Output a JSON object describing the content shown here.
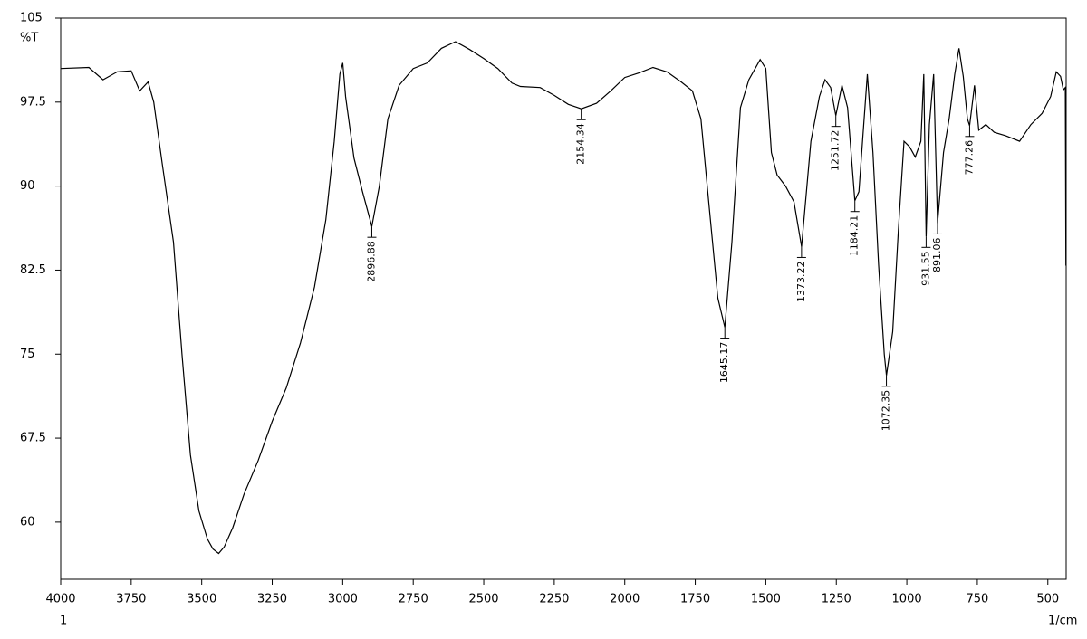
{
  "chart_data": {
    "type": "line",
    "y_label": "%T",
    "x_label": "1/cm",
    "x_note": "1",
    "color": "#000000",
    "xlim": [
      4000,
      435
    ],
    "ylim": [
      54.9,
      105
    ],
    "xticks": [
      4000,
      3750,
      3500,
      3250,
      3000,
      2750,
      2500,
      2250,
      2000,
      1750,
      1500,
      1250,
      1000,
      750,
      500
    ],
    "yticks": [
      105,
      97.5,
      90,
      82.5,
      75,
      67.5,
      60
    ],
    "x": [
      4000,
      3900,
      3850,
      3800,
      3750,
      3720,
      3690,
      3670,
      3640,
      3600,
      3570,
      3540,
      3510,
      3480,
      3460,
      3440,
      3420,
      3390,
      3350,
      3300,
      3250,
      3200,
      3150,
      3100,
      3060,
      3030,
      3010,
      3000,
      2990,
      2960,
      2930,
      2896.88,
      2870,
      2840,
      2800,
      2750,
      2700,
      2650,
      2600,
      2550,
      2500,
      2450,
      2400,
      2370,
      2300,
      2250,
      2200,
      2154.34,
      2100,
      2050,
      2000,
      1950,
      1900,
      1850,
      1800,
      1760,
      1730,
      1700,
      1670,
      1645.17,
      1620,
      1590,
      1560,
      1520,
      1500,
      1480,
      1460,
      1430,
      1400,
      1373.22,
      1340,
      1310,
      1290,
      1270,
      1251.72,
      1230,
      1210,
      1184.21,
      1170,
      1150,
      1140,
      1120,
      1100,
      1080,
      1072.35,
      1050,
      1030,
      1010,
      990,
      970,
      950,
      940,
      931.55,
      920,
      905,
      891.06,
      870,
      850,
      830,
      815,
      800,
      785,
      777.26,
      760,
      745,
      720,
      690,
      650,
      600,
      560,
      520,
      490,
      470,
      455,
      445,
      438,
      436
    ],
    "values": [
      100.5,
      100.6,
      99.5,
      100.2,
      100.3,
      98.5,
      99.3,
      97.5,
      92,
      85,
      75,
      66,
      61,
      58.5,
      57.6,
      57.2,
      57.8,
      59.5,
      62.5,
      65.5,
      69,
      72,
      76,
      81,
      87,
      94,
      100,
      101,
      98,
      92.5,
      89.5,
      86.4,
      90,
      96,
      99,
      100.5,
      101,
      102.3,
      102.9,
      102.2,
      101.4,
      100.5,
      99.2,
      98.9,
      98.8,
      98.1,
      97.3,
      96.9,
      97.4,
      98.5,
      99.7,
      100.1,
      100.6,
      100.2,
      99.3,
      98.5,
      96,
      88,
      80,
      77.4,
      85,
      97,
      99.5,
      101.3,
      100.5,
      93,
      91,
      90,
      88.6,
      84.6,
      94,
      98,
      99.5,
      98.8,
      96.3,
      99,
      97,
      88.7,
      89.5,
      96.5,
      100,
      93,
      83,
      75,
      73.1,
      77,
      86,
      94,
      93.5,
      92.6,
      94,
      100,
      85.5,
      95.5,
      100,
      86.7,
      93,
      96,
      100,
      102.3,
      99.8,
      96,
      95.4,
      99,
      95,
      95.5,
      94.8,
      94.5,
      94,
      95.5,
      96.5,
      98,
      100.2,
      99.8,
      98.6,
      98.8,
      82.9
    ],
    "peaks": [
      {
        "x": 2896.88,
        "y": 86.4
      },
      {
        "x": 2154.34,
        "y": 96.9
      },
      {
        "x": 1645.17,
        "y": 77.4
      },
      {
        "x": 1373.22,
        "y": 84.6
      },
      {
        "x": 1251.72,
        "y": 96.3
      },
      {
        "x": 1184.21,
        "y": 88.7
      },
      {
        "x": 1072.35,
        "y": 73.1
      },
      {
        "x": 931.55,
        "y": 85.5
      },
      {
        "x": 891.06,
        "y": 86.7
      },
      {
        "x": 777.26,
        "y": 95.4
      }
    ]
  }
}
